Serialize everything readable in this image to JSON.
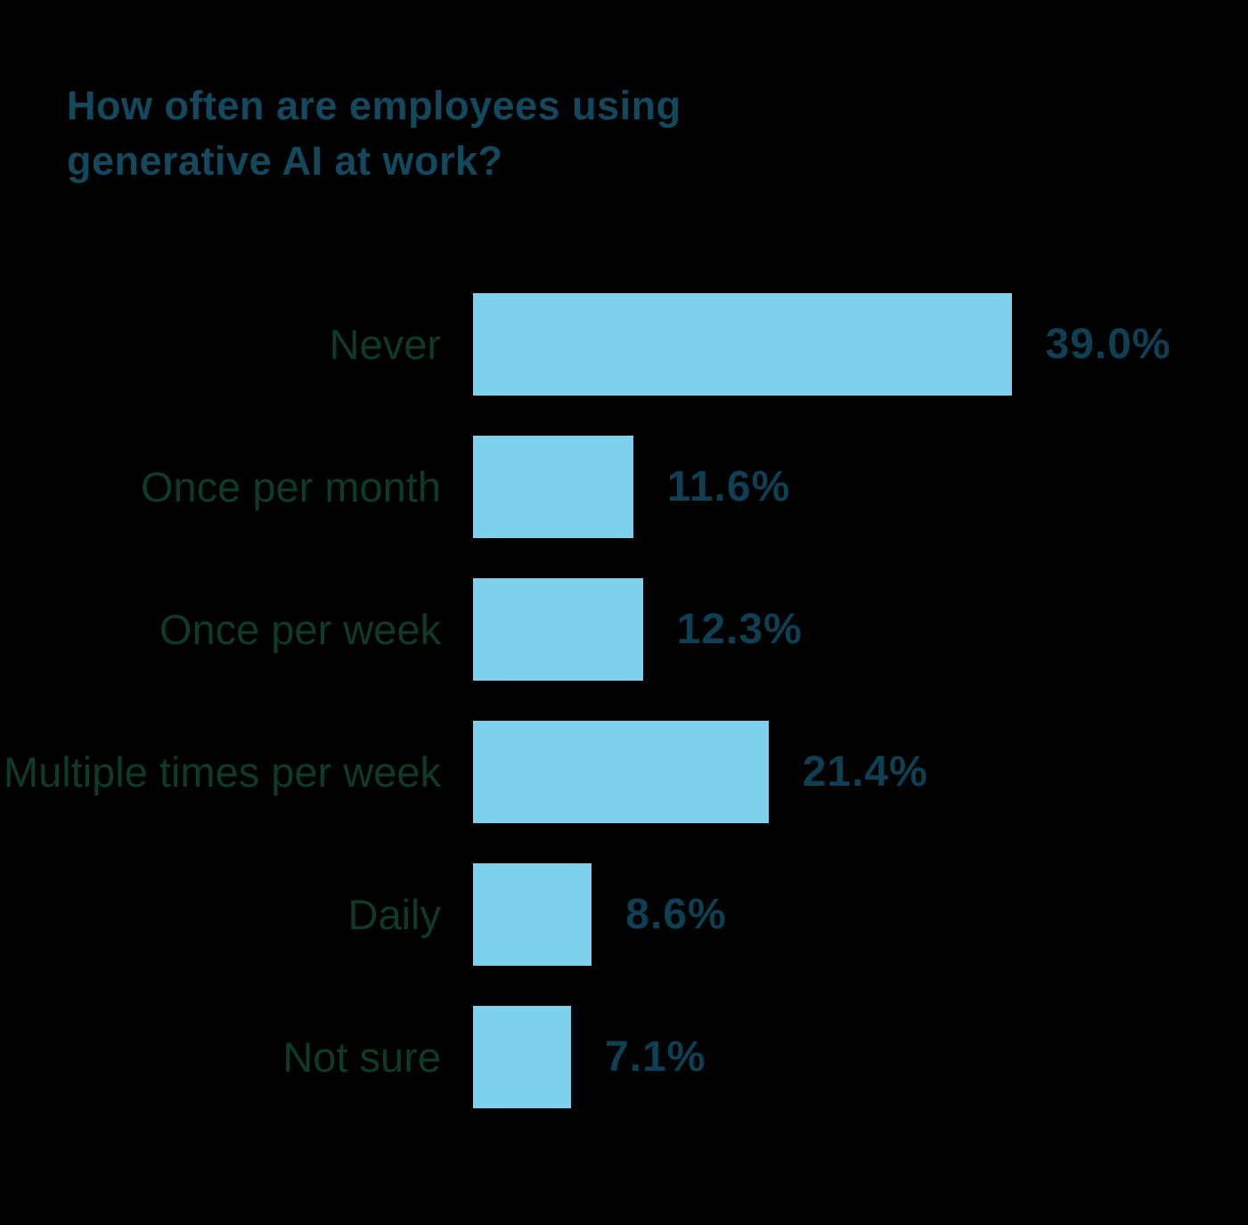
{
  "title": "How often are employees using generative AI at work?",
  "chart_data": {
    "type": "bar",
    "orientation": "horizontal",
    "title": "How often are employees using generative AI at work?",
    "categories": [
      "Never",
      "Once per month",
      "Once per week",
      "Multiple times per week",
      "Daily",
      "Not sure"
    ],
    "values": [
      39.0,
      11.6,
      12.3,
      21.4,
      8.6,
      7.1
    ],
    "value_labels": [
      "39.0%",
      "11.6%",
      "12.3%",
      "21.4%",
      "8.6%",
      "7.1%"
    ],
    "xlabel": "",
    "ylabel": "",
    "xlim": [
      0,
      40
    ],
    "grid": false,
    "legend": false,
    "axis_ticks_visible": false,
    "colors": {
      "background": "#000000",
      "bar": "#7DD1EC",
      "title_text": "#14485C",
      "value_text": "#0E3F53",
      "category_text": "#0E3A2B"
    }
  }
}
